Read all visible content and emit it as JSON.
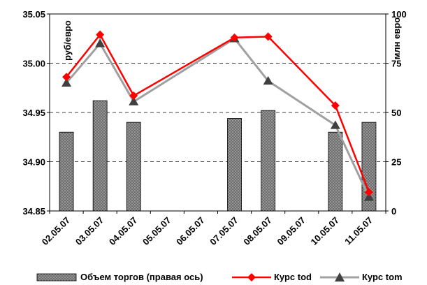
{
  "chart_data": {
    "type": "bar+line",
    "categories": [
      "02.05.07",
      "03.05.07",
      "04.05.07",
      "05.05.07",
      "06.05.07",
      "07.05.07",
      "08.05.07",
      "09.05.07",
      "10.05.07",
      "11.05.07"
    ],
    "left_axis": {
      "label": "руб/евро",
      "ylim": [
        34.85,
        35.05
      ],
      "ticks": [
        "34.85",
        "34.90",
        "34.95",
        "35.00",
        "35.05"
      ]
    },
    "right_axis": {
      "label": "млн евро",
      "ylim": [
        0,
        100
      ],
      "ticks": [
        "0",
        "25",
        "50",
        "75",
        "100"
      ]
    },
    "grid": "dashed horizontal",
    "legend_position": "bottom",
    "series": [
      {
        "name": "Объем торгов (правая ось)",
        "kind": "bar",
        "axis": "right",
        "color": "#707070",
        "values": [
          40,
          56,
          45,
          null,
          null,
          47,
          51,
          null,
          40,
          45
        ]
      },
      {
        "name": "Курс tod",
        "kind": "line",
        "axis": "left",
        "color": "#ff0000",
        "marker": "diamond",
        "values": [
          34.986,
          35.029,
          34.967,
          null,
          null,
          35.026,
          35.027,
          null,
          34.957,
          34.869
        ]
      },
      {
        "name": "Курс tom",
        "kind": "line",
        "axis": "left",
        "color": "#a0a0a0",
        "marker": "triangle",
        "values": [
          34.98,
          35.02,
          34.961,
          null,
          null,
          35.025,
          34.982,
          null,
          34.937,
          34.864
        ]
      }
    ]
  }
}
